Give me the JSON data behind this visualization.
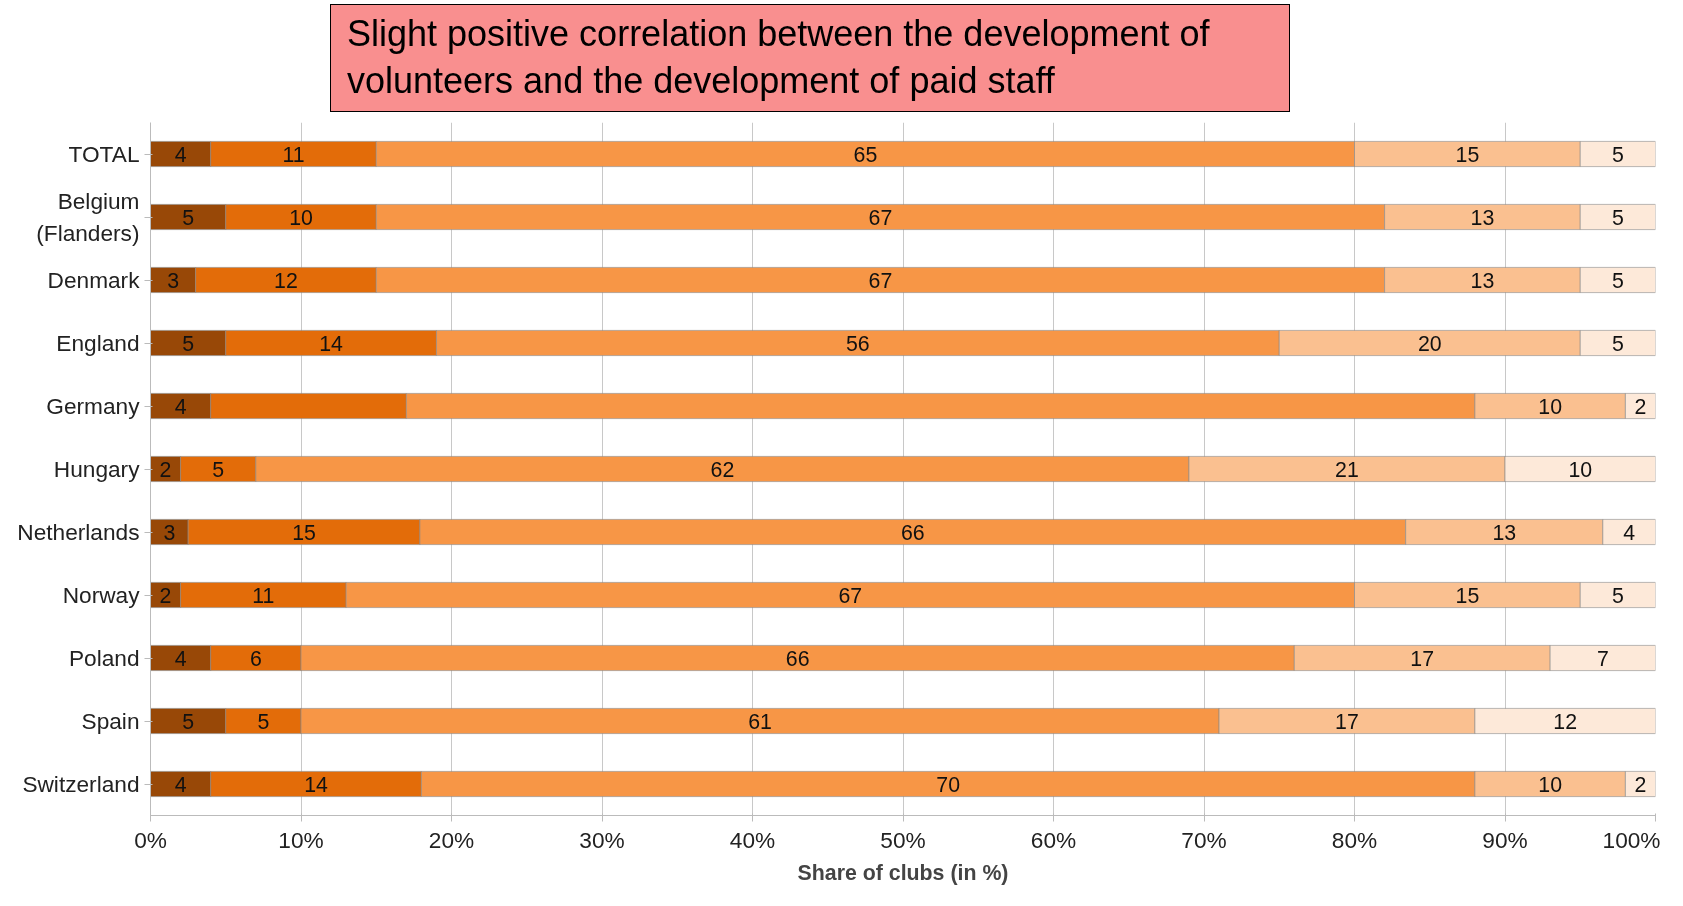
{
  "chart_data": {
    "type": "bar",
    "orientation": "horizontal",
    "stacked": true,
    "categories": [
      "TOTAL",
      "Belgium\n(Flanders)",
      "Denmark",
      "England",
      "Germany",
      "Hungary",
      "Netherlands",
      "Norway",
      "Poland",
      "Spain",
      "Switzerland"
    ],
    "series": [
      {
        "color": "#984807",
        "values": [
          4,
          5,
          3,
          5,
          4,
          2,
          2.5,
          2,
          4,
          5,
          4
        ],
        "value_labels": [
          "4",
          "5",
          "3",
          "5",
          "4",
          "2",
          "3",
          "2",
          "4",
          "5",
          "4"
        ]
      },
      {
        "color": "#e36c09",
        "values": [
          11,
          10,
          12,
          14,
          13,
          5,
          15.4,
          11,
          6,
          5,
          14
        ],
        "value_labels": [
          "11",
          "10",
          "12",
          "14",
          null,
          "5",
          "15",
          "11",
          "6",
          "5",
          "14"
        ]
      },
      {
        "color": "#f79646",
        "values": [
          65,
          67,
          67,
          56,
          71,
          62,
          65.5,
          67,
          66,
          61,
          70
        ],
        "value_labels": [
          "65",
          "67",
          "67",
          "56",
          null,
          "62",
          "66",
          "67",
          "66",
          "61",
          "70"
        ]
      },
      {
        "color": "#fac090",
        "values": [
          15,
          13,
          13,
          20,
          10,
          21,
          13.1,
          15,
          17,
          17,
          10
        ],
        "value_labels": [
          "15",
          "13",
          "13",
          "20",
          "10",
          "21",
          "13",
          "15",
          "17",
          "17",
          "10"
        ]
      },
      {
        "color": "#fde9d9",
        "values": [
          5,
          5,
          5,
          5,
          2,
          10,
          3.5,
          5,
          7,
          12,
          2
        ],
        "value_labels": [
          "5",
          "5",
          "5",
          "5",
          "2",
          "10",
          "4",
          "5",
          "7",
          "12",
          "2"
        ]
      }
    ],
    "xlim": [
      0,
      100
    ],
    "xticks": [
      {
        "value": 0,
        "label": "0%"
      },
      {
        "value": 10,
        "label": "10%"
      },
      {
        "value": 20,
        "label": "20%"
      },
      {
        "value": 30,
        "label": "30%"
      },
      {
        "value": 40,
        "label": "40%"
      },
      {
        "value": 50,
        "label": "50%"
      },
      {
        "value": 60,
        "label": "60%"
      },
      {
        "value": 70,
        "label": "70%"
      },
      {
        "value": 80,
        "label": "80%"
      },
      {
        "value": 90,
        "label": "90%"
      },
      {
        "value": 100,
        "label": "100%"
      }
    ],
    "xlabel": "Share of clubs (in %)",
    "grid": "x",
    "annotations": [
      "Slight positive correlation between the development of volunteers and the development of paid staff"
    ]
  }
}
